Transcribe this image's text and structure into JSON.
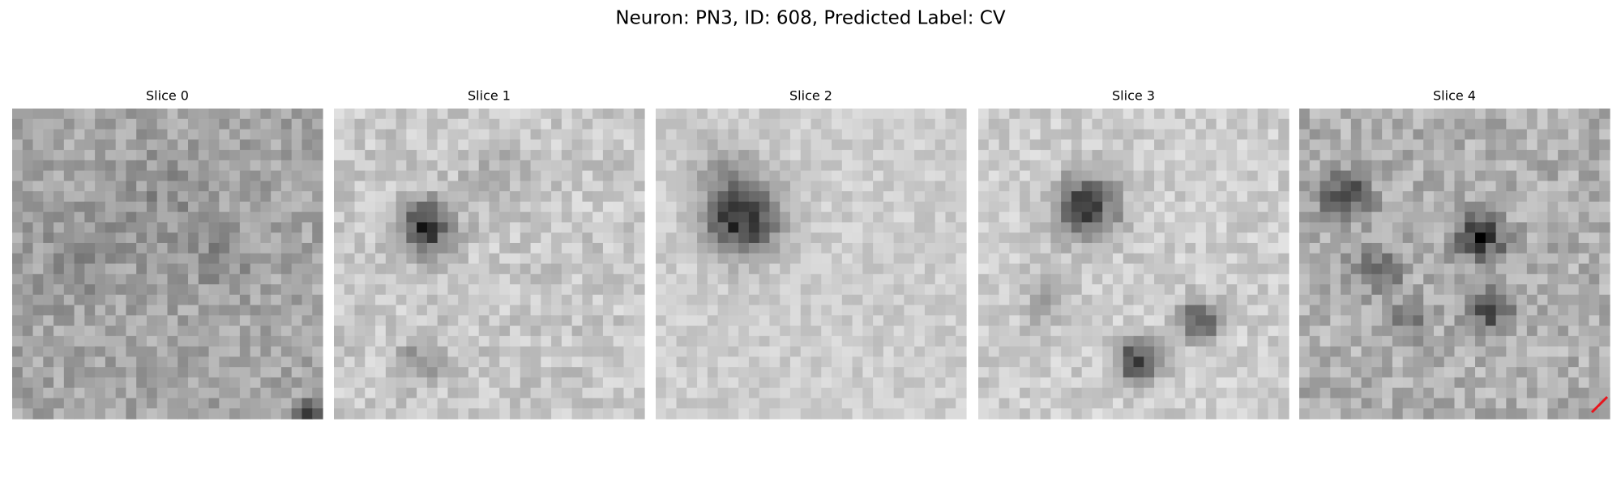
{
  "figure": {
    "title": "Neuron: PN3, ID: 608, Predicted Label: CV",
    "panels": [
      "Slice 0",
      "Slice 1",
      "Slice 2",
      "Slice 3",
      "Slice 4"
    ]
  }
}
